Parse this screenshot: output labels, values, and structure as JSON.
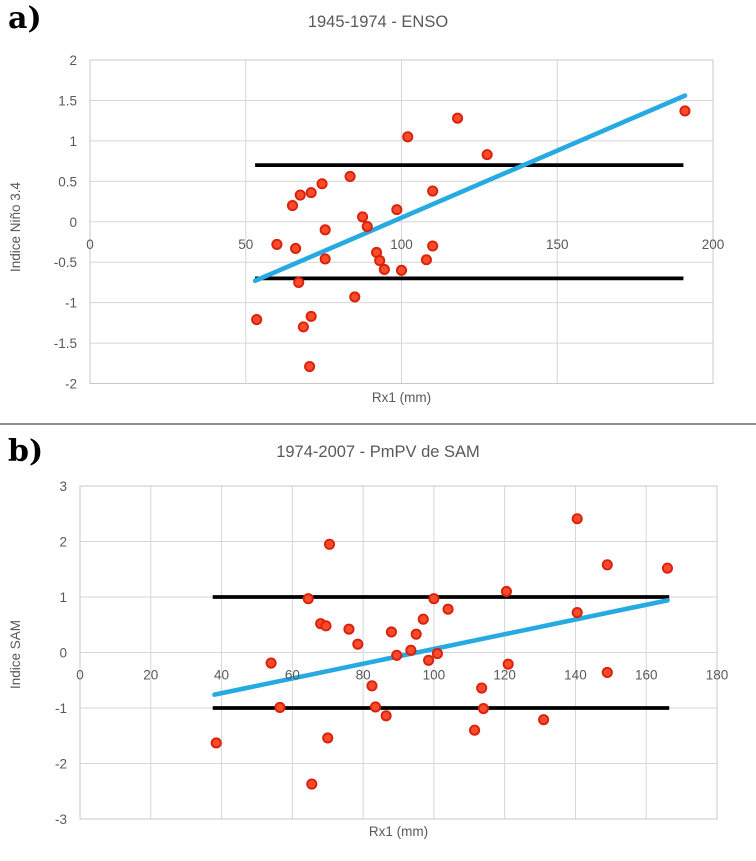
{
  "page": {
    "background": "#ffffff"
  },
  "panels": [
    {
      "label": "a)"
    },
    {
      "label": "b)"
    }
  ],
  "chart_data": [
    {
      "type": "scatter",
      "panel": "a",
      "title": "1945-1974 - ENSO",
      "xlabel": "Rx1 (mm)",
      "ylabel": "Indice Niño 3.4",
      "xlim": [
        0,
        200
      ],
      "ylim": [
        -2,
        2
      ],
      "xticks": [
        0,
        50,
        100,
        150,
        200
      ],
      "yticks": [
        2,
        1.5,
        1,
        0.5,
        0,
        -0.5,
        -1,
        -1.5,
        -2
      ],
      "grid": true,
      "legend": "none",
      "points": [
        [
          53.5,
          -1.21
        ],
        [
          60,
          -0.28
        ],
        [
          65,
          0.2
        ],
        [
          66,
          -0.33
        ],
        [
          67,
          -0.75
        ],
        [
          67.5,
          0.33
        ],
        [
          68.5,
          -1.3
        ],
        [
          70.5,
          -1.79
        ],
        [
          71,
          0.36
        ],
        [
          71,
          -1.17
        ],
        [
          74.5,
          0.47
        ],
        [
          75.5,
          -0.1
        ],
        [
          75.5,
          -0.46
        ],
        [
          83.5,
          0.56
        ],
        [
          85,
          -0.93
        ],
        [
          87.5,
          0.06
        ],
        [
          89,
          -0.06
        ],
        [
          92,
          -0.38
        ],
        [
          93,
          -0.48
        ],
        [
          94.5,
          -0.59
        ],
        [
          98.5,
          0.15
        ],
        [
          100,
          -0.6
        ],
        [
          102,
          1.05
        ],
        [
          108,
          -0.47
        ],
        [
          110,
          0.38
        ],
        [
          110,
          -0.3
        ],
        [
          118,
          1.28
        ],
        [
          127.5,
          0.83
        ],
        [
          191,
          1.37
        ]
      ],
      "trendline": {
        "x": [
          53,
          191
        ],
        "y": [
          -0.73,
          1.56
        ]
      },
      "threshold_lines": [
        {
          "y": 0.7,
          "x": [
            53,
            190.5
          ]
        },
        {
          "y": -0.7,
          "x": [
            53,
            190.5
          ]
        }
      ],
      "colors": {
        "point_fill": "#fb4b28",
        "point_stroke": "#d8210e",
        "trend": "#27aae1",
        "threshold": "#000000"
      }
    },
    {
      "type": "scatter",
      "panel": "b",
      "title": "1974-2007 - PmPV de SAM",
      "xlabel": "Rx1 (mm)",
      "ylabel": "Indice SAM",
      "xlim": [
        0,
        180
      ],
      "ylim": [
        -3,
        3
      ],
      "xticks": [
        0,
        20,
        40,
        60,
        80,
        100,
        120,
        140,
        160,
        180
      ],
      "yticks": [
        3,
        2,
        1,
        0,
        -1,
        -2,
        -3
      ],
      "grid": true,
      "legend": "none",
      "points": [
        [
          38.5,
          -1.63
        ],
        [
          54,
          -0.19
        ],
        [
          56.5,
          -0.99
        ],
        [
          64.5,
          0.97
        ],
        [
          65.5,
          -2.37
        ],
        [
          68,
          0.52
        ],
        [
          69.5,
          0.48
        ],
        [
          70,
          -1.54
        ],
        [
          70.5,
          1.95
        ],
        [
          76,
          0.42
        ],
        [
          78.5,
          0.15
        ],
        [
          82.5,
          -0.6
        ],
        [
          83.5,
          -0.98
        ],
        [
          86.5,
          -1.14
        ],
        [
          88,
          0.37
        ],
        [
          89.5,
          -0.05
        ],
        [
          93.5,
          0.04
        ],
        [
          95,
          0.33
        ],
        [
          97,
          0.6
        ],
        [
          98.5,
          -0.14
        ],
        [
          100,
          0.97
        ],
        [
          101,
          -0.02
        ],
        [
          104,
          0.78
        ],
        [
          111.5,
          -1.4
        ],
        [
          113.5,
          -0.64
        ],
        [
          114,
          -1.01
        ],
        [
          120.5,
          1.1
        ],
        [
          121,
          -0.21
        ],
        [
          131,
          -1.21
        ],
        [
          140.5,
          2.41
        ],
        [
          140.5,
          0.72
        ],
        [
          149,
          1.58
        ],
        [
          149,
          -0.36
        ],
        [
          166,
          1.52
        ]
      ],
      "trendline": {
        "x": [
          38,
          166
        ],
        "y": [
          -0.76,
          0.94
        ]
      },
      "threshold_lines": [
        {
          "y": 1,
          "x": [
            37.5,
            166.5
          ]
        },
        {
          "y": -1,
          "x": [
            37.5,
            166.5
          ]
        }
      ],
      "colors": {
        "point_fill": "#fb4b28",
        "point_stroke": "#d8210e",
        "trend": "#27aae1",
        "threshold": "#000000"
      }
    }
  ]
}
